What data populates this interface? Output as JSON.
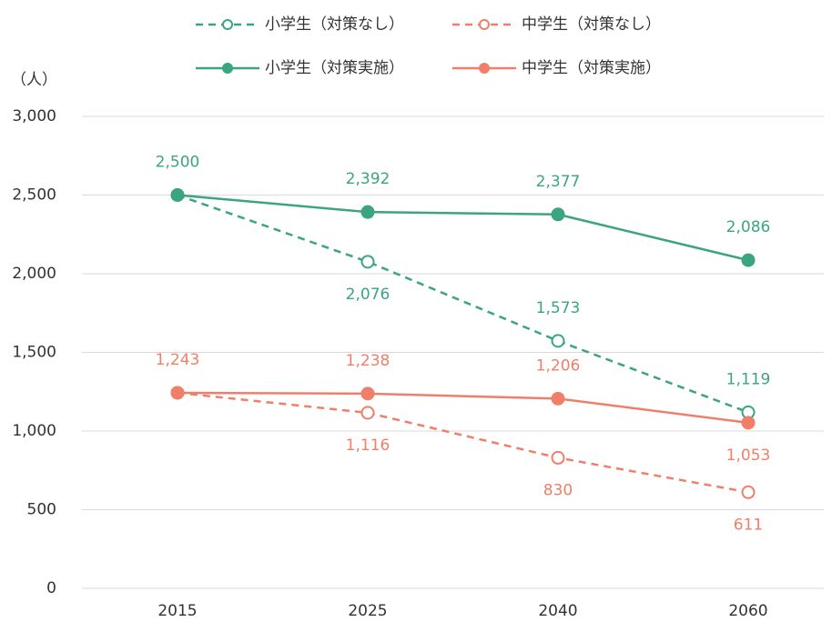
{
  "chart_data": {
    "type": "line",
    "y_unit_label": "（人）",
    "categories": [
      "2015",
      "2025",
      "2040",
      "2060"
    ],
    "ylim": [
      0,
      3000
    ],
    "yticks": [
      0,
      500,
      {
        "value": 1000,
        "label": "1,000"
      },
      {
        "value": 1500,
        "label": "1,500"
      },
      {
        "value": 2000,
        "label": "2,000"
      },
      {
        "value": 2500,
        "label": "2,500"
      },
      {
        "value": 3000,
        "label": "3,000"
      }
    ],
    "grid": true,
    "legend": "top",
    "series": [
      {
        "name": "小学生（対策なし）",
        "color": "#3aa57f",
        "line_style": "dashed",
        "marker": "open",
        "values": [
          2500,
          2076,
          1573,
          1119
        ],
        "value_labels": [
          null,
          "2,076",
          "1,573",
          "1,119"
        ]
      },
      {
        "name": "中学生（対策なし）",
        "color": "#f07f6a",
        "line_style": "dashed",
        "marker": "open",
        "values": [
          1243,
          1116,
          830,
          611
        ],
        "value_labels": [
          null,
          "1,116",
          "830",
          "611"
        ]
      },
      {
        "name": "小学生（対策実施）",
        "color": "#3aa57f",
        "line_style": "solid",
        "marker": "filled",
        "values": [
          2500,
          2392,
          2377,
          2086
        ],
        "value_labels": [
          "2,500",
          "2,392",
          "2,377",
          "2,086"
        ]
      },
      {
        "name": "中学生（対策実施）",
        "color": "#f07f6a",
        "line_style": "solid",
        "marker": "filled",
        "values": [
          1243,
          1238,
          1206,
          1053
        ],
        "value_labels": [
          "1,243",
          "1,238",
          "1,206",
          "1,053"
        ]
      }
    ]
  }
}
